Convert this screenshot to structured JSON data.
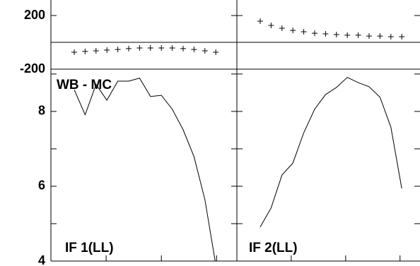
{
  "chart_data": [
    {
      "type": "scatter",
      "ylim": [
        -200,
        200
      ],
      "yticks": [
        200,
        -200
      ],
      "categories": [
        null,
        null,
        null,
        null,
        null,
        null,
        null,
        null,
        null,
        null,
        null,
        null,
        null,
        null
      ],
      "values": [
        -74,
        -68,
        -63,
        -58,
        -53,
        -47,
        -42,
        -42,
        -42,
        -42,
        -47,
        -53,
        -63,
        -74
      ]
    },
    {
      "type": "scatter",
      "ylim": [
        -200,
        200
      ],
      "categories": [
        null,
        null,
        null,
        null,
        null,
        null,
        null,
        null,
        null,
        null,
        null,
        null,
        null,
        null
      ],
      "values": [
        158,
        126,
        105,
        89,
        79,
        68,
        63,
        58,
        53,
        53,
        47,
        47,
        42,
        42
      ]
    },
    {
      "type": "line",
      "title": "WB - MC",
      "label": "IF 1(LL)",
      "ylim": [
        4,
        9.13
      ],
      "yticks": [
        8,
        6,
        4
      ],
      "categories": [
        null,
        null,
        null,
        null,
        null,
        null,
        null,
        null,
        null,
        null,
        null,
        null,
        null,
        null
      ],
      "values": [
        8.58,
        7.91,
        8.72,
        8.3,
        8.81,
        8.81,
        8.89,
        8.4,
        8.43,
        8.06,
        7.51,
        6.79,
        5.64,
        3.9
      ]
    },
    {
      "type": "line",
      "label": "IF 2(LL)",
      "ylim": [
        4,
        9.13
      ],
      "categories": [
        null,
        null,
        null,
        null,
        null,
        null,
        null,
        null,
        null,
        null,
        null,
        null,
        null,
        null
      ],
      "values": [
        4.91,
        5.42,
        6.3,
        6.62,
        7.43,
        8.06,
        8.45,
        8.64,
        8.91,
        8.77,
        8.66,
        8.38,
        7.58,
        5.94
      ]
    }
  ]
}
